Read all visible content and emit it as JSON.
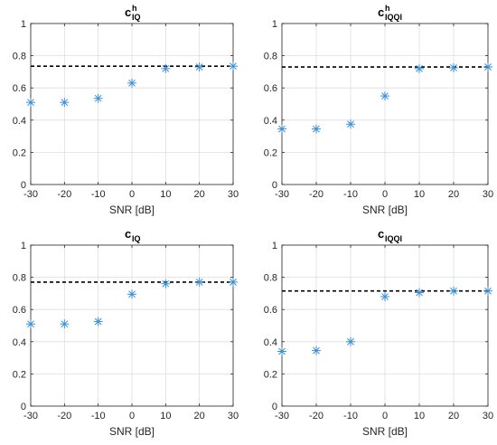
{
  "chart_data": [
    {
      "type": "scatter",
      "title_base": "c",
      "title_sup": "h",
      "title_sub": "IQ",
      "xlabel": "SNR [dB]",
      "ylabel": "",
      "xlim": [
        -30,
        30
      ],
      "ylim": [
        0,
        1
      ],
      "x_ticks": [
        "-30",
        "-20",
        "-10",
        "0",
        "10",
        "20",
        "30"
      ],
      "y_ticks": [
        "0",
        "0.2",
        "0.4",
        "0.6",
        "0.8",
        "1"
      ],
      "grid": true,
      "marker": "asterisk",
      "marker_color": "#3a8fd8",
      "x": [
        -30,
        -20,
        -10,
        0,
        10,
        20,
        30
      ],
      "y": [
        0.51,
        0.51,
        0.535,
        0.63,
        0.72,
        0.73,
        0.735
      ],
      "reference_line": {
        "y": 0.735,
        "style": "dashed",
        "color": "#000000"
      }
    },
    {
      "type": "scatter",
      "title_base": "c",
      "title_sup": "h",
      "title_sub": "IQQI",
      "xlabel": "SNR [dB]",
      "ylabel": "",
      "xlim": [
        -30,
        30
      ],
      "ylim": [
        0,
        1
      ],
      "x_ticks": [
        "-30",
        "-20",
        "-10",
        "0",
        "10",
        "20",
        "30"
      ],
      "y_ticks": [
        "0",
        "0.2",
        "0.4",
        "0.6",
        "0.8",
        "1"
      ],
      "grid": true,
      "marker": "asterisk",
      "marker_color": "#3a8fd8",
      "x": [
        -30,
        -20,
        -10,
        0,
        10,
        20,
        30
      ],
      "y": [
        0.345,
        0.345,
        0.375,
        0.55,
        0.72,
        0.725,
        0.73
      ],
      "reference_line": {
        "y": 0.73,
        "style": "dashed",
        "color": "#000000"
      }
    },
    {
      "type": "scatter",
      "title_base": "c",
      "title_sup": "",
      "title_sub": "IQ",
      "xlabel": "SNR [dB]",
      "ylabel": "",
      "xlim": [
        -30,
        30
      ],
      "ylim": [
        0,
        1
      ],
      "x_ticks": [
        "-30",
        "-20",
        "-10",
        "0",
        "10",
        "20",
        "30"
      ],
      "y_ticks": [
        "0",
        "0.2",
        "0.4",
        "0.6",
        "0.8",
        "1"
      ],
      "grid": true,
      "marker": "asterisk",
      "marker_color": "#3a8fd8",
      "x": [
        -30,
        -20,
        -10,
        0,
        10,
        20,
        30
      ],
      "y": [
        0.51,
        0.51,
        0.525,
        0.695,
        0.76,
        0.77,
        0.77
      ],
      "reference_line": {
        "y": 0.77,
        "style": "dashed",
        "color": "#000000"
      }
    },
    {
      "type": "scatter",
      "title_base": "c",
      "title_sup": "",
      "title_sub": "IQQI",
      "xlabel": "SNR [dB]",
      "ylabel": "",
      "xlim": [
        -30,
        30
      ],
      "ylim": [
        0,
        1
      ],
      "x_ticks": [
        "-30",
        "-20",
        "-10",
        "0",
        "10",
        "20",
        "30"
      ],
      "y_ticks": [
        "0",
        "0.2",
        "0.4",
        "0.6",
        "0.8",
        "1"
      ],
      "grid": true,
      "marker": "asterisk",
      "marker_color": "#3a8fd8",
      "x": [
        -30,
        -20,
        -10,
        0,
        10,
        20,
        30
      ],
      "y": [
        0.34,
        0.345,
        0.4,
        0.68,
        0.705,
        0.715,
        0.715
      ],
      "reference_line": {
        "y": 0.715,
        "style": "dashed",
        "color": "#000000"
      }
    }
  ]
}
